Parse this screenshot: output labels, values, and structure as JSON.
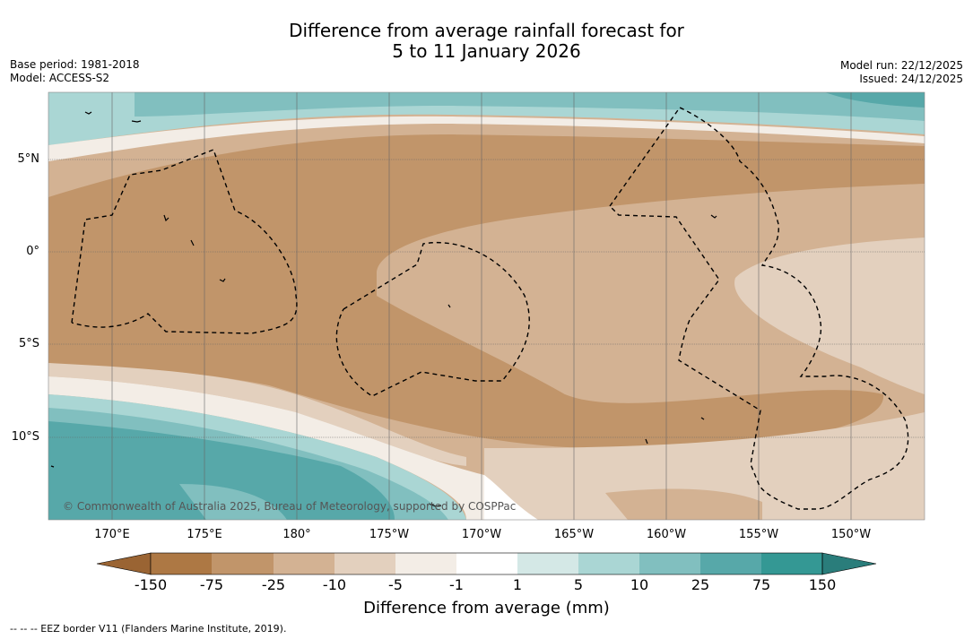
{
  "title": {
    "line1": "Difference from average rainfall forecast for",
    "line2": "5 to 11 January 2026"
  },
  "meta_left": {
    "base_period": "Base period: 1981-2018",
    "model": "Model: ACCESS-S2"
  },
  "meta_right": {
    "model_run": "Model run: 22/12/2025",
    "issued": "Issued: 24/12/2025"
  },
  "map": {
    "lat_labels": [
      "5°N",
      "0°",
      "5°S",
      "10°S"
    ],
    "lon_labels": [
      "170°E",
      "175°E",
      "180°",
      "175°W",
      "170°W",
      "165°W",
      "160°W",
      "155°W",
      "150°W"
    ],
    "copyright": "© Commonwealth of Australia 2025, Bureau of Meteorology, supported by COSPPac"
  },
  "colorbar": {
    "title": "Difference from average (mm)",
    "labels": [
      "-150",
      "-75",
      "-25",
      "-10",
      "-5",
      "-1",
      "1",
      "5",
      "10",
      "25",
      "75",
      "150"
    ],
    "colors": [
      "#9a6433",
      "#ad7844",
      "#c1956a",
      "#d3b293",
      "#e3d0be",
      "#f3ede6",
      "#ffffff",
      "#d4e8e6",
      "#aad6d4",
      "#81bfbf",
      "#57a8a9",
      "#349894",
      "#2a7d7b"
    ]
  },
  "footer": "--  --  -- EEZ border V11 (Flanders Marine Institute, 2019)."
}
